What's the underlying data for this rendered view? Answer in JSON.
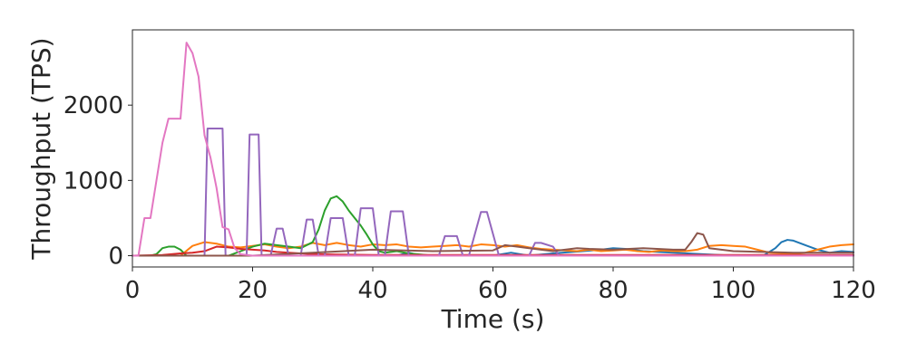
{
  "chart_data": {
    "type": "line",
    "title": "",
    "xlabel": "Time (s)",
    "ylabel": "Throughput (TPS)",
    "xlim": [
      0,
      120
    ],
    "ylim": [
      -150,
      3000
    ],
    "x_ticks": [
      0,
      20,
      40,
      60,
      80,
      100,
      120
    ],
    "y_ticks": [
      0,
      1000,
      2000
    ],
    "grid": false,
    "legend": "none",
    "series": [
      {
        "color": "#1f77b4",
        "x": [
          0,
          40,
          44,
          46,
          48,
          50,
          60,
          63,
          66,
          70,
          75,
          78,
          80,
          82,
          85,
          90,
          100,
          105,
          107,
          108,
          109,
          110,
          112,
          114,
          116,
          118,
          120
        ],
        "y": [
          0,
          0,
          0,
          40,
          0,
          0,
          0,
          40,
          0,
          30,
          60,
          80,
          100,
          90,
          60,
          40,
          0,
          0,
          100,
          180,
          210,
          200,
          140,
          80,
          40,
          60,
          50
        ]
      },
      {
        "color": "#ff7f0e",
        "x": [
          0,
          8,
          10,
          12,
          14,
          16,
          18,
          20,
          22,
          24,
          26,
          28,
          30,
          32,
          34,
          36,
          38,
          40,
          42,
          44,
          46,
          48,
          50,
          52,
          54,
          56,
          58,
          60,
          62,
          64,
          66,
          68,
          70,
          72,
          74,
          76,
          78,
          80,
          82,
          84,
          86,
          88,
          90,
          92,
          94,
          96,
          98,
          100,
          102,
          104,
          106,
          108,
          110,
          112,
          114,
          116,
          118,
          120
        ],
        "y": [
          0,
          0,
          130,
          180,
          160,
          120,
          110,
          130,
          150,
          120,
          100,
          120,
          170,
          140,
          170,
          140,
          120,
          150,
          140,
          150,
          120,
          110,
          120,
          130,
          140,
          120,
          150,
          140,
          120,
          140,
          110,
          90,
          80,
          70,
          60,
          80,
          60,
          70,
          80,
          60,
          50,
          70,
          60,
          60,
          80,
          130,
          140,
          130,
          120,
          80,
          40,
          30,
          20,
          40,
          80,
          120,
          140,
          150
        ]
      },
      {
        "color": "#2ca02c",
        "x": [
          0,
          3,
          4,
          5,
          6,
          7,
          8,
          9,
          10,
          16,
          18,
          20,
          22,
          24,
          26,
          28,
          30,
          31,
          32,
          33,
          34,
          35,
          36,
          37,
          38,
          39,
          40,
          41,
          42,
          44,
          46,
          50,
          60,
          120
        ],
        "y": [
          0,
          0,
          20,
          100,
          120,
          120,
          80,
          0,
          0,
          0,
          60,
          120,
          160,
          140,
          120,
          100,
          180,
          350,
          600,
          760,
          790,
          720,
          600,
          500,
          400,
          280,
          150,
          60,
          40,
          60,
          30,
          0,
          0,
          0
        ]
      },
      {
        "color": "#d62728",
        "x": [
          0,
          5,
          8,
          10,
          12,
          14,
          16,
          18,
          20,
          22,
          24,
          26,
          28,
          30,
          40,
          50,
          60,
          70,
          80,
          90,
          100,
          110,
          120
        ],
        "y": [
          0,
          10,
          30,
          40,
          60,
          120,
          110,
          90,
          80,
          70,
          50,
          40,
          30,
          20,
          10,
          10,
          10,
          10,
          10,
          10,
          10,
          10,
          10
        ]
      },
      {
        "color": "#9467bd",
        "x": [
          0,
          12,
          12.5,
          13,
          15,
          15.5,
          19,
          19.5,
          21,
          21.5,
          23,
          24,
          25,
          26,
          28,
          29,
          30,
          31,
          32,
          33,
          35,
          36,
          37,
          38,
          40,
          41,
          42,
          43,
          45,
          46,
          51,
          52,
          54,
          55,
          56,
          58,
          59,
          61,
          62,
          66,
          67,
          68,
          70,
          71,
          75,
          120
        ],
        "y": [
          0,
          0,
          1690,
          1690,
          1690,
          0,
          0,
          1610,
          1610,
          0,
          0,
          360,
          360,
          0,
          0,
          480,
          480,
          0,
          0,
          500,
          500,
          0,
          0,
          630,
          630,
          0,
          0,
          590,
          590,
          0,
          0,
          260,
          260,
          0,
          0,
          580,
          580,
          0,
          0,
          0,
          170,
          170,
          120,
          0,
          0,
          0
        ]
      },
      {
        "color": "#8c564b",
        "x": [
          0,
          20,
          30,
          40,
          50,
          60,
          62,
          64,
          66,
          70,
          72,
          74,
          76,
          80,
          85,
          90,
          92,
          93,
          94,
          95,
          96,
          100,
          110,
          120
        ],
        "y": [
          0,
          0,
          40,
          80,
          60,
          70,
          140,
          120,
          100,
          60,
          80,
          100,
          90,
          80,
          100,
          80,
          80,
          180,
          300,
          280,
          100,
          60,
          40,
          40
        ]
      },
      {
        "color": "#e377c2",
        "x": [
          0,
          1,
          2,
          3,
          4,
          5,
          6,
          7,
          8,
          9,
          10,
          11,
          12,
          13,
          14,
          15,
          16,
          17,
          18,
          20,
          120
        ],
        "y": [
          0,
          0,
          500,
          500,
          1000,
          1500,
          1820,
          1820,
          1820,
          2830,
          2690,
          2380,
          1600,
          1300,
          900,
          380,
          350,
          100,
          20,
          0,
          0
        ]
      }
    ]
  }
}
